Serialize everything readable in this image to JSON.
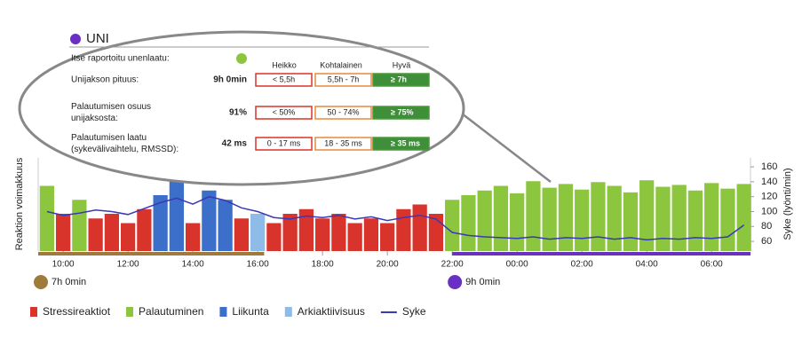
{
  "callout": {
    "title": "UNI",
    "self_report": "Itse raportoitu unenlaatu:",
    "headers": [
      "Heikko",
      "Kohtalainen",
      "Hyvä"
    ],
    "rows": [
      {
        "label": [
          "Unijakson pituus:"
        ],
        "value": "9h 0min",
        "cells": [
          "< 5,5h",
          "5,5h - 7h",
          "≥ 7h"
        ]
      },
      {
        "label": [
          "Palautumisen osuus",
          "unijaksosta:"
        ],
        "value": "91%",
        "cells": [
          "< 50%",
          "50 - 74%",
          "≥ 75%"
        ]
      },
      {
        "label": [
          "Palautumisen laatu",
          "(sykevälivaihtelu, RMSSD):"
        ],
        "value": "42 ms",
        "cells": [
          "0 - 17 ms",
          "18 - 35 ms",
          "≥ 35 ms"
        ]
      }
    ]
  },
  "chart_data": {
    "type": "bar",
    "ylabel": "Reaktion voimakkuus",
    "y2label": "Syke (lyönti/min)",
    "xlim": [
      9.23,
      31.2
    ],
    "ylim": [
      0,
      100
    ],
    "y2lim": [
      47,
      172
    ],
    "xticks": [
      {
        "value": 10,
        "label": "10:00"
      },
      {
        "value": 12,
        "label": "12:00"
      },
      {
        "value": 14,
        "label": "14:00"
      },
      {
        "value": 16,
        "label": "16:00"
      },
      {
        "value": 18,
        "label": "18:00"
      },
      {
        "value": 20,
        "label": "20:00"
      },
      {
        "value": 22,
        "label": "22:00"
      },
      {
        "value": 24,
        "label": "00:00"
      },
      {
        "value": 26,
        "label": "02:00"
      },
      {
        "value": 28,
        "label": "04:00"
      },
      {
        "value": 30,
        "label": "06:00"
      }
    ],
    "y2ticks": [
      60,
      80,
      100,
      120,
      140,
      160
    ],
    "series": [
      {
        "name": "Stressireaktiot",
        "color": "#d9342b",
        "x": [
          10,
          11,
          11.5,
          12,
          12.5,
          14,
          15.5,
          16.5,
          17,
          17.5,
          18,
          18.5,
          19,
          19.5,
          20,
          20.5,
          21,
          21.5
        ],
        "values": [
          40,
          35,
          40,
          30,
          45,
          30,
          35,
          30,
          40,
          45,
          35,
          40,
          30,
          35,
          30,
          45,
          50,
          40
        ]
      },
      {
        "name": "Palautuminen",
        "color": "#8cc63f",
        "x": [
          9.5,
          10.5,
          22,
          22.5,
          23,
          23.5,
          24,
          24.5,
          25,
          25.5,
          26,
          26.5,
          27,
          27.5,
          28,
          28.5,
          29,
          29.5,
          30,
          30.5,
          31
        ],
        "values": [
          70,
          55,
          55,
          60,
          65,
          70,
          62,
          75,
          68,
          72,
          66,
          74,
          70,
          63,
          76,
          69,
          71,
          65,
          73,
          67,
          72
        ]
      },
      {
        "name": "Liikunta",
        "color": "#3b6fc9",
        "x": [
          13,
          13.5,
          14.5,
          15
        ],
        "values": [
          60,
          75,
          65,
          55
        ]
      },
      {
        "name": "Arkiaktiivisuus",
        "color": "#8fbbe8",
        "x": [
          16
        ],
        "values": [
          40
        ]
      },
      {
        "name": "Syke",
        "color": "#3a37b8",
        "type": "line",
        "axis": "y2",
        "x": [
          9.5,
          10,
          10.5,
          11,
          11.5,
          12,
          12.5,
          13,
          13.5,
          14,
          14.5,
          15,
          15.5,
          16,
          16.5,
          17,
          17.5,
          18,
          18.5,
          19,
          19.5,
          20,
          20.5,
          21,
          21.5,
          22,
          22.5,
          23,
          23.5,
          24,
          24.5,
          25,
          25.5,
          26,
          26.5,
          27,
          27.5,
          28,
          28.5,
          29,
          29.5,
          30,
          30.5,
          31
        ],
        "values": [
          100,
          95,
          98,
          102,
          100,
          96,
          104,
          112,
          118,
          110,
          120,
          115,
          105,
          100,
          92,
          90,
          94,
          92,
          95,
          90,
          93,
          88,
          92,
          95,
          90,
          72,
          68,
          66,
          65,
          64,
          66,
          63,
          65,
          64,
          66,
          63,
          65,
          62,
          64,
          63,
          65,
          64,
          66,
          82
        ]
      }
    ],
    "periods": [
      {
        "label": "7h 0min",
        "color": "#a07a3c",
        "start": 9.23,
        "end": 16.2
      },
      {
        "label": "9h 0min",
        "color": "#6a2fc4",
        "start": 22.0,
        "end": 31.2
      }
    ]
  }
}
